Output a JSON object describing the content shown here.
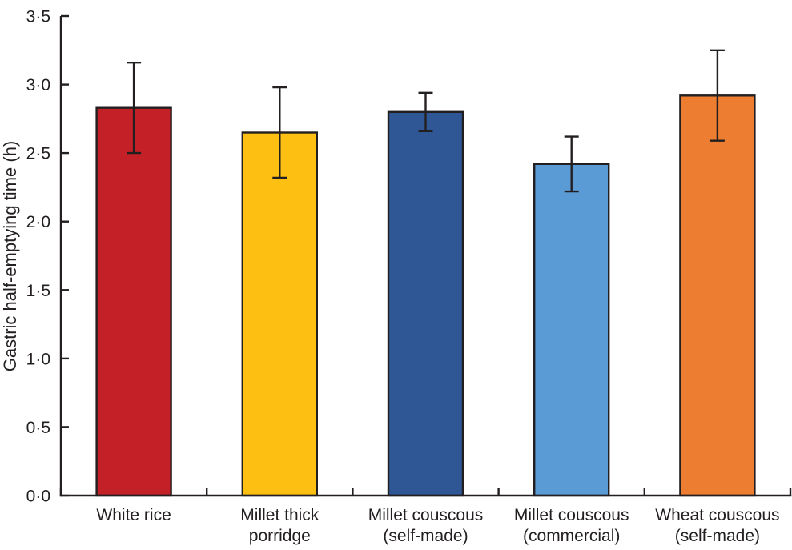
{
  "chart_data": {
    "type": "bar",
    "title": "",
    "xlabel": "",
    "ylabel": "Gastric half-emptying time (h)",
    "ylim": [
      0,
      3.5
    ],
    "ytick_step": 0.5,
    "yticks": [
      0,
      0.5,
      1.0,
      1.5,
      2.0,
      2.5,
      3.0,
      3.5
    ],
    "ytick_labels": [
      "0·0",
      "0·5",
      "1·0",
      "1·5",
      "2·0",
      "2·5",
      "3·0",
      "3·5"
    ],
    "decimal_separator": "·",
    "grid": false,
    "legend_position": "none",
    "categories": [
      "White rice",
      "Millet thick porridge",
      "Millet couscous (self-made)",
      "Millet couscous (commercial)",
      "Wheat couscous (self-made)"
    ],
    "category_label_lines": [
      [
        "White rice"
      ],
      [
        "Millet thick",
        "porridge"
      ],
      [
        "Millet couscous",
        "(self-made)"
      ],
      [
        "Millet couscous",
        "(commercial)"
      ],
      [
        "Wheat couscous",
        "(self-made)"
      ]
    ],
    "series": [
      {
        "name": "Gastric half-emptying time (h)",
        "values": [
          2.83,
          2.65,
          2.8,
          2.42,
          2.92
        ],
        "errors": [
          0.33,
          0.33,
          0.14,
          0.2,
          0.33
        ],
        "error_upper": [
          3.16,
          2.98,
          2.94,
          2.62,
          3.25
        ],
        "error_lower": [
          2.5,
          2.32,
          2.66,
          2.22,
          2.59
        ]
      }
    ],
    "bar_colors": [
      "#c32027",
      "#fcbf12",
      "#2f5795",
      "#5b9bd5",
      "#ed7d31"
    ],
    "axis_color": "#231f20",
    "error_bar_color": "#231f20",
    "text_color": "#231f20"
  }
}
